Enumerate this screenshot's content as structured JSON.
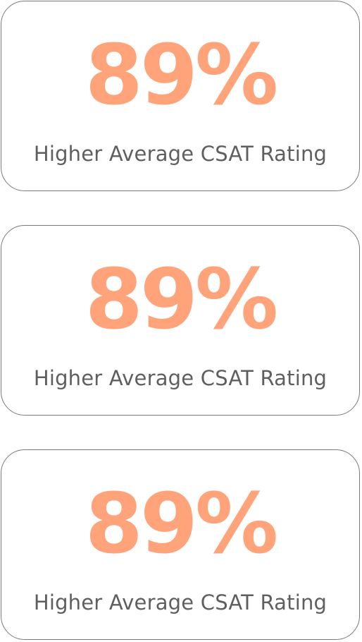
{
  "colors": {
    "value": "#ffa47a",
    "label": "#5f5f5f",
    "border": "#7a7a7a"
  },
  "stats": [
    {
      "value": "89%",
      "label": "Higher Average CSAT Rating"
    },
    {
      "value": "89%",
      "label": "Higher Average CSAT Rating"
    },
    {
      "value": "89%",
      "label": "Higher Average CSAT Rating"
    }
  ]
}
